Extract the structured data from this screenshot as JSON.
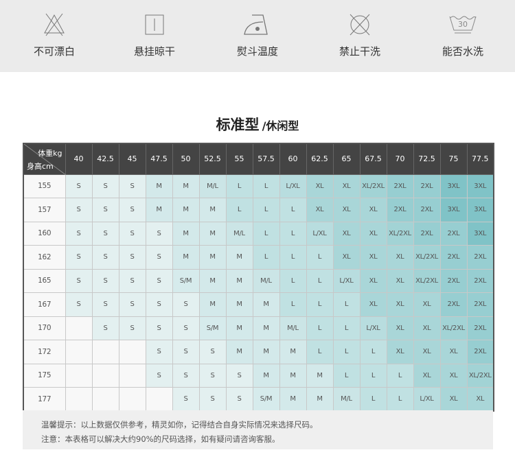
{
  "care_icons": [
    {
      "icon": "no-bleach-icon",
      "label": "不可漂白"
    },
    {
      "icon": "hang-dry-icon",
      "label": "悬挂晾干"
    },
    {
      "icon": "iron-icon",
      "label": "熨斗温度"
    },
    {
      "icon": "no-dry-clean-icon",
      "label": "禁止干洗"
    },
    {
      "icon": "wash-30-icon",
      "label": "能否水洗",
      "temp": "30"
    }
  ],
  "title": {
    "main": "标准型",
    "sub": "/休闲型"
  },
  "table": {
    "corner_weight": "体重kg",
    "corner_height": "身高cm",
    "weights": [
      "40",
      "42.5",
      "45",
      "47.5",
      "50",
      "52.5",
      "55",
      "57.5",
      "60",
      "62.5",
      "65",
      "67.5",
      "70",
      "72.5",
      "75",
      "77.5"
    ],
    "rows": [
      {
        "height": "155",
        "sizes": [
          "S",
          "S",
          "S",
          "M",
          "M",
          "M/L",
          "L",
          "L",
          "L/XL",
          "XL",
          "XL",
          "XL/2XL",
          "2XL",
          "2XL",
          "3XL",
          "3XL"
        ]
      },
      {
        "height": "157",
        "sizes": [
          "S",
          "S",
          "S",
          "M",
          "M",
          "M",
          "L",
          "L",
          "L",
          "XL",
          "XL",
          "XL",
          "2XL",
          "2XL",
          "3XL",
          "3XL"
        ]
      },
      {
        "height": "160",
        "sizes": [
          "S",
          "S",
          "S",
          "S",
          "M",
          "M",
          "M/L",
          "L",
          "L",
          "L/XL",
          "XL",
          "XL",
          "XL/2XL",
          "2XL",
          "2XL",
          "3XL"
        ]
      },
      {
        "height": "162",
        "sizes": [
          "S",
          "S",
          "S",
          "S",
          "M",
          "M",
          "M",
          "L",
          "L",
          "L",
          "XL",
          "XL",
          "XL",
          "XL/2XL",
          "2XL",
          "2XL"
        ]
      },
      {
        "height": "165",
        "sizes": [
          "S",
          "S",
          "S",
          "S",
          "S/M",
          "M",
          "M",
          "M/L",
          "L",
          "L",
          "L/XL",
          "XL",
          "XL",
          "XL/2XL",
          "2XL",
          "2XL"
        ]
      },
      {
        "height": "167",
        "sizes": [
          "S",
          "S",
          "S",
          "S",
          "S",
          "M",
          "M",
          "M",
          "L",
          "L",
          "L",
          "XL",
          "XL",
          "XL",
          "2XL",
          "2XL"
        ]
      },
      {
        "height": "170",
        "sizes": [
          "",
          "S",
          "S",
          "S",
          "S",
          "S/M",
          "M",
          "M",
          "M/L",
          "L",
          "L",
          "L/XL",
          "XL",
          "XL",
          "XL/2XL",
          "2XL"
        ]
      },
      {
        "height": "172",
        "sizes": [
          "",
          "",
          "",
          "S",
          "S",
          "S",
          "M",
          "M",
          "M",
          "L",
          "L",
          "L",
          "XL",
          "XL",
          "XL",
          "2XL"
        ]
      },
      {
        "height": "175",
        "sizes": [
          "",
          "",
          "",
          "S",
          "S",
          "S",
          "S",
          "M",
          "M",
          "M",
          "L",
          "L",
          "L",
          "XL",
          "XL",
          "XL/2XL"
        ]
      },
      {
        "height": "177",
        "sizes": [
          "",
          "",
          "",
          "",
          "S",
          "S",
          "S",
          "S/M",
          "M",
          "M",
          "M/L",
          "L",
          "L",
          "L/XL",
          "XL",
          "XL"
        ]
      }
    ],
    "colors": {
      "header_bg": "#444444",
      "empty": "#f8f8f8",
      "S": "#e3f0f0",
      "S/M": "#d6ebec",
      "M": "#d3e9ea",
      "M/L": "#cbe5e6",
      "L": "#c0e1e2",
      "L/XL": "#b8dddf",
      "XL": "#a9d6d8",
      "XL/2XL": "#a2d3d5",
      "2XL": "#97ced1",
      "3XL": "#80c3c7"
    }
  },
  "notes": [
    "温馨提示：以上数据仅供参考，精灵如你，记得结合自身实际情况来选择尺码。",
    "注意：本表格可以解决大约90%的尺码选择，如有疑问请咨询客服。"
  ]
}
